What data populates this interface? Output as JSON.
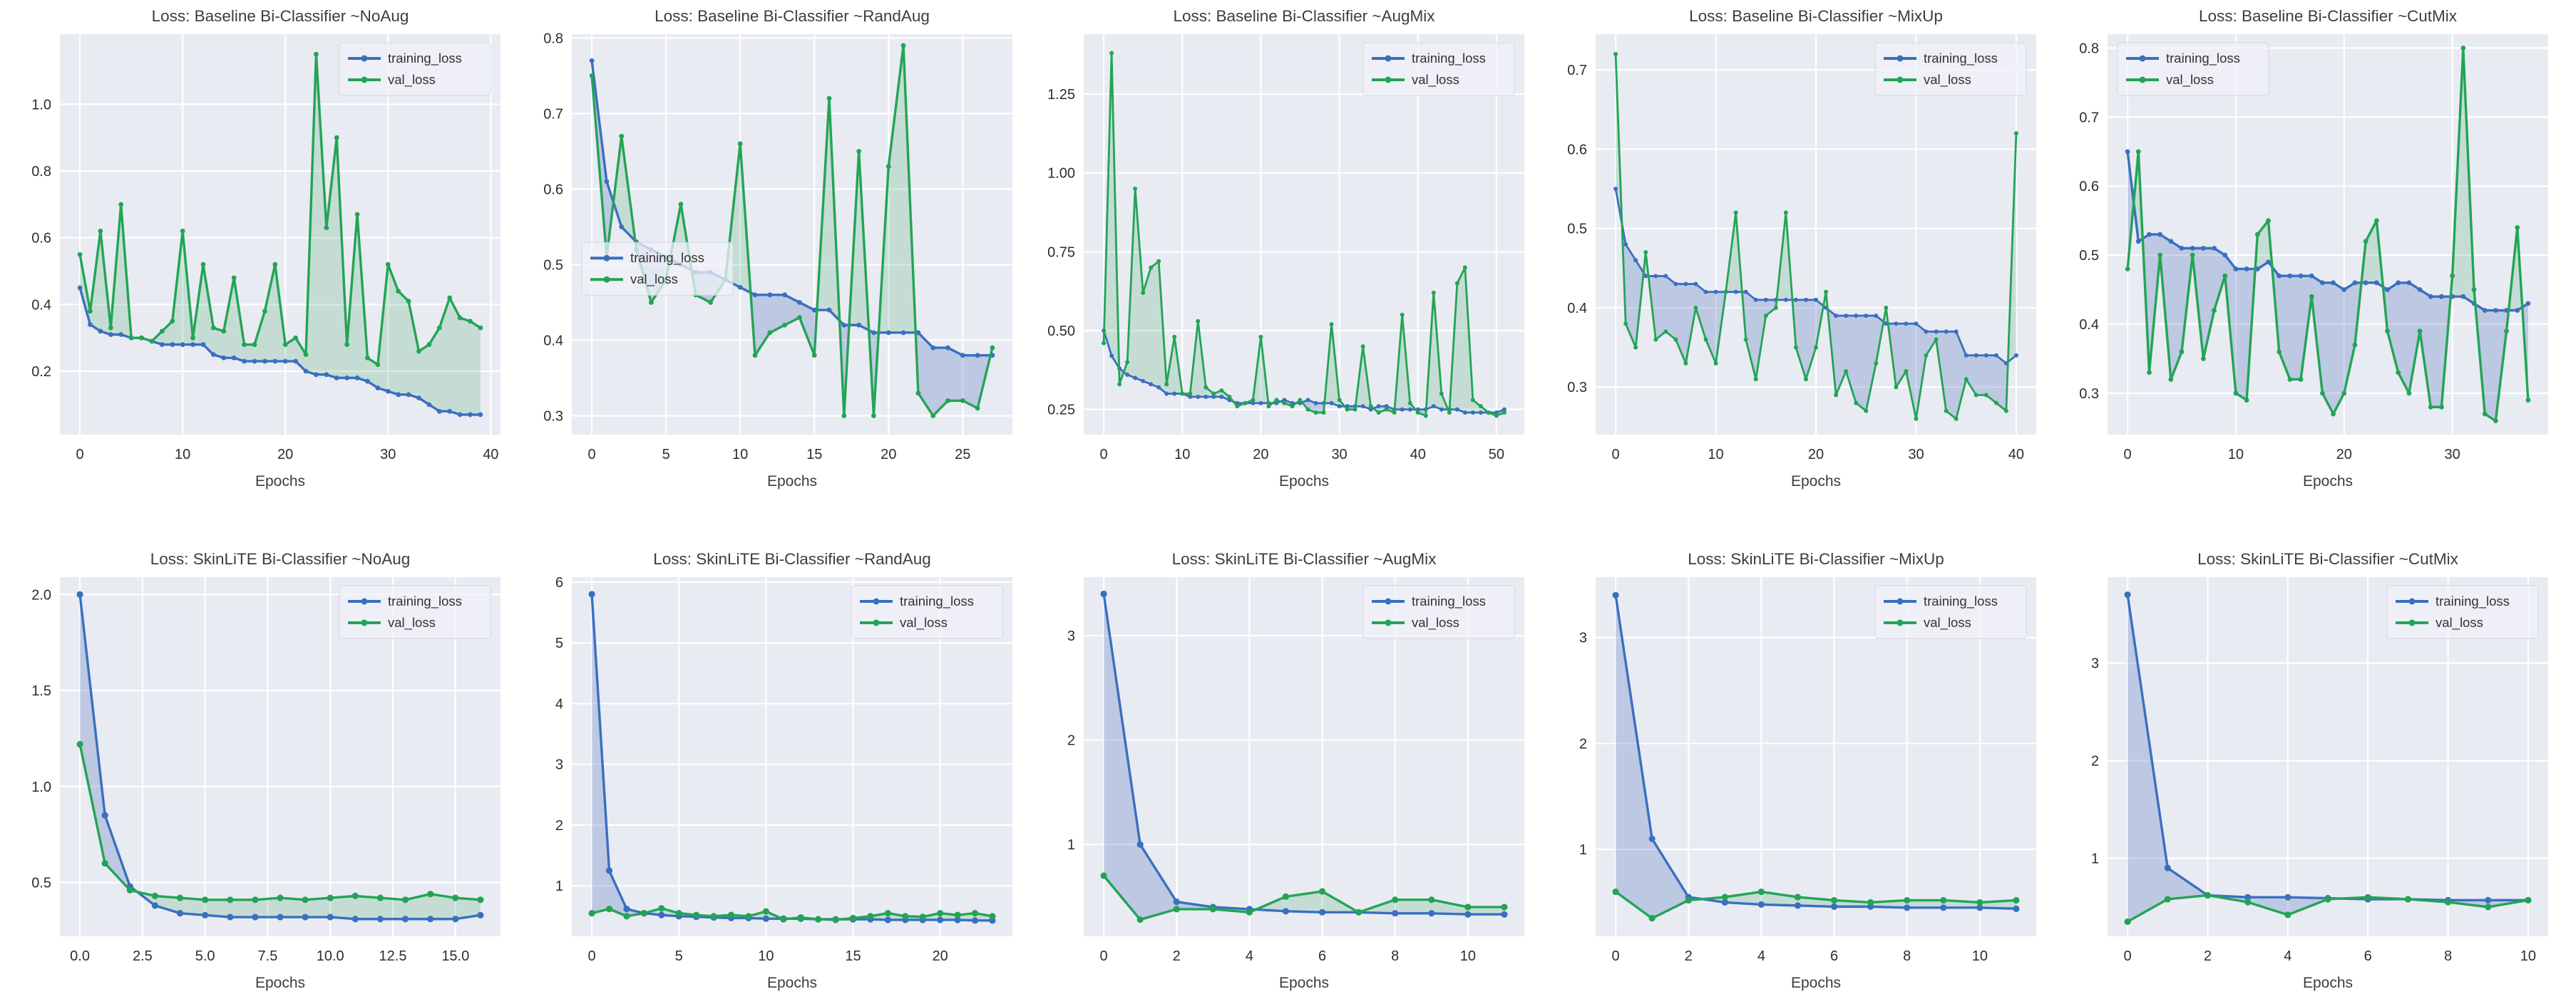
{
  "figure": {
    "xlabel": "Epochs",
    "legend_labels": {
      "train": "training_loss",
      "val": "val_loss"
    },
    "colors": {
      "train_line": "#3a6fc0",
      "val_line": "#23a455",
      "train_fill": "rgba(88,118,188,0.30)",
      "val_fill": "rgba(70,170,110,0.22)",
      "plot_bg": "#e9ebf3",
      "grid": "#ffffff",
      "text": "#3d3d3d",
      "tick_text": "#2e2e2e",
      "legend_bg": "rgba(240,242,248,0.75)",
      "legend_border": "#d3d6e0"
    }
  },
  "chart_data": [
    {
      "type": "line",
      "title": "Loss: Baseline Bi-Classifier ~NoAug",
      "xlabel": "Epochs",
      "legend_position": "top-right",
      "xlim": [
        -1.95,
        40.95
      ],
      "ylim": [
        0.01,
        1.21
      ],
      "xticks": [
        0,
        10,
        20,
        30,
        40
      ],
      "xtick_labels": [
        "0",
        "10",
        "20",
        "30",
        "40"
      ],
      "yticks": [
        0.2,
        0.4,
        0.6,
        0.8,
        1.0
      ],
      "ytick_labels": [
        "0.2",
        "0.4",
        "0.6",
        "0.8",
        "1.0"
      ],
      "series": [
        {
          "name": "training_loss",
          "values": [
            0.45,
            0.34,
            0.32,
            0.31,
            0.31,
            0.3,
            0.3,
            0.29,
            0.28,
            0.28,
            0.28,
            0.28,
            0.28,
            0.25,
            0.24,
            0.24,
            0.23,
            0.23,
            0.23,
            0.23,
            0.23,
            0.23,
            0.2,
            0.19,
            0.19,
            0.18,
            0.18,
            0.18,
            0.17,
            0.15,
            0.14,
            0.13,
            0.13,
            0.12,
            0.1,
            0.08,
            0.08,
            0.07,
            0.07,
            0.07
          ]
        },
        {
          "name": "val_loss",
          "values": [
            0.55,
            0.38,
            0.62,
            0.33,
            0.7,
            0.3,
            0.3,
            0.29,
            0.32,
            0.35,
            0.62,
            0.3,
            0.52,
            0.33,
            0.32,
            0.48,
            0.28,
            0.28,
            0.38,
            0.52,
            0.28,
            0.3,
            0.25,
            1.15,
            0.63,
            0.9,
            0.28,
            0.67,
            0.24,
            0.22,
            0.52,
            0.44,
            0.41,
            0.26,
            0.28,
            0.33,
            0.42,
            0.36,
            0.35,
            0.33
          ]
        }
      ]
    },
    {
      "type": "line",
      "title": "Loss: Baseline Bi-Classifier ~RandAug",
      "xlabel": "Epochs",
      "legend_position": "center-left",
      "xlim": [
        -1.35,
        28.35
      ],
      "ylim": [
        0.275,
        0.805
      ],
      "xticks": [
        0,
        5,
        10,
        15,
        20,
        25
      ],
      "xtick_labels": [
        "0",
        "5",
        "10",
        "15",
        "20",
        "25"
      ],
      "yticks": [
        0.3,
        0.4,
        0.5,
        0.6,
        0.7,
        0.8
      ],
      "ytick_labels": [
        "0.3",
        "0.4",
        "0.5",
        "0.6",
        "0.7",
        "0.8"
      ],
      "series": [
        {
          "name": "training_loss",
          "values": [
            0.77,
            0.61,
            0.55,
            0.53,
            0.52,
            0.51,
            0.5,
            0.49,
            0.49,
            0.48,
            0.47,
            0.46,
            0.46,
            0.46,
            0.45,
            0.44,
            0.44,
            0.42,
            0.42,
            0.41,
            0.41,
            0.41,
            0.41,
            0.39,
            0.39,
            0.38,
            0.38,
            0.38
          ]
        },
        {
          "name": "val_loss",
          "values": [
            0.75,
            0.51,
            0.67,
            0.52,
            0.45,
            0.48,
            0.58,
            0.46,
            0.45,
            0.48,
            0.66,
            0.38,
            0.41,
            0.42,
            0.43,
            0.38,
            0.72,
            0.3,
            0.65,
            0.3,
            0.63,
            0.79,
            0.33,
            0.3,
            0.32,
            0.32,
            0.31,
            0.39
          ]
        }
      ]
    },
    {
      "type": "line",
      "title": "Loss: Baseline Bi-Classifier ~AugMix",
      "xlabel": "Epochs",
      "legend_position": "top-right",
      "xlim": [
        -2.55,
        53.55
      ],
      "ylim": [
        0.17,
        1.44
      ],
      "xticks": [
        0,
        10,
        20,
        30,
        40,
        50
      ],
      "xtick_labels": [
        "0",
        "10",
        "20",
        "30",
        "40",
        "50"
      ],
      "yticks": [
        0.25,
        0.5,
        0.75,
        1.0,
        1.25
      ],
      "ytick_labels": [
        "0.25",
        "0.50",
        "0.75",
        "1.00",
        "1.25"
      ],
      "series": [
        {
          "name": "training_loss",
          "values": [
            0.5,
            0.42,
            0.38,
            0.36,
            0.35,
            0.34,
            0.33,
            0.32,
            0.3,
            0.3,
            0.3,
            0.29,
            0.29,
            0.29,
            0.29,
            0.29,
            0.28,
            0.27,
            0.27,
            0.27,
            0.27,
            0.27,
            0.27,
            0.28,
            0.27,
            0.27,
            0.28,
            0.27,
            0.27,
            0.27,
            0.26,
            0.26,
            0.26,
            0.26,
            0.25,
            0.26,
            0.26,
            0.25,
            0.25,
            0.25,
            0.25,
            0.25,
            0.26,
            0.25,
            0.25,
            0.25,
            0.24,
            0.24,
            0.24,
            0.24,
            0.24,
            0.25
          ]
        },
        {
          "name": "val_loss",
          "values": [
            0.46,
            1.38,
            0.33,
            0.4,
            0.95,
            0.62,
            0.7,
            0.72,
            0.33,
            0.48,
            0.3,
            0.3,
            0.53,
            0.32,
            0.3,
            0.31,
            0.29,
            0.26,
            0.27,
            0.28,
            0.48,
            0.26,
            0.28,
            0.27,
            0.26,
            0.28,
            0.25,
            0.24,
            0.24,
            0.52,
            0.28,
            0.25,
            0.25,
            0.45,
            0.26,
            0.24,
            0.25,
            0.24,
            0.55,
            0.27,
            0.24,
            0.23,
            0.62,
            0.3,
            0.24,
            0.65,
            0.7,
            0.28,
            0.26,
            0.24,
            0.23,
            0.24
          ]
        }
      ]
    },
    {
      "type": "line",
      "title": "Loss: Baseline Bi-Classifier ~MixUp",
      "xlabel": "Epochs",
      "legend_position": "top-right",
      "xlim": [
        -2.0,
        42.0
      ],
      "ylim": [
        0.24,
        0.745
      ],
      "xticks": [
        0,
        10,
        20,
        30,
        40
      ],
      "xtick_labels": [
        "0",
        "10",
        "20",
        "30",
        "40"
      ],
      "yticks": [
        0.3,
        0.4,
        0.5,
        0.6,
        0.7
      ],
      "ytick_labels": [
        "0.3",
        "0.4",
        "0.5",
        "0.6",
        "0.7"
      ],
      "series": [
        {
          "name": "training_loss",
          "values": [
            0.55,
            0.48,
            0.46,
            0.44,
            0.44,
            0.44,
            0.43,
            0.43,
            0.43,
            0.42,
            0.42,
            0.42,
            0.42,
            0.42,
            0.41,
            0.41,
            0.41,
            0.41,
            0.41,
            0.41,
            0.41,
            0.4,
            0.39,
            0.39,
            0.39,
            0.39,
            0.39,
            0.38,
            0.38,
            0.38,
            0.38,
            0.37,
            0.37,
            0.37,
            0.37,
            0.34,
            0.34,
            0.34,
            0.34,
            0.33,
            0.34
          ]
        },
        {
          "name": "val_loss",
          "values": [
            0.72,
            0.38,
            0.35,
            0.47,
            0.36,
            0.37,
            0.36,
            0.33,
            0.4,
            0.36,
            0.33,
            0.42,
            0.52,
            0.36,
            0.31,
            0.39,
            0.4,
            0.52,
            0.35,
            0.31,
            0.35,
            0.42,
            0.29,
            0.32,
            0.28,
            0.27,
            0.33,
            0.4,
            0.3,
            0.32,
            0.26,
            0.34,
            0.36,
            0.27,
            0.26,
            0.31,
            0.29,
            0.29,
            0.28,
            0.27,
            0.62
          ]
        }
      ]
    },
    {
      "type": "line",
      "title": "Loss: Baseline Bi-Classifier ~CutMix",
      "xlabel": "Epochs",
      "legend_position": "top-left",
      "xlim": [
        -1.85,
        38.85
      ],
      "ylim": [
        0.24,
        0.82
      ],
      "xticks": [
        0,
        10,
        20,
        30
      ],
      "xtick_labels": [
        "0",
        "10",
        "20",
        "30"
      ],
      "yticks": [
        0.3,
        0.4,
        0.5,
        0.6,
        0.7,
        0.8
      ],
      "ytick_labels": [
        "0.3",
        "0.4",
        "0.5",
        "0.6",
        "0.7",
        "0.8"
      ],
      "series": [
        {
          "name": "training_loss",
          "values": [
            0.65,
            0.52,
            0.53,
            0.53,
            0.52,
            0.51,
            0.51,
            0.51,
            0.51,
            0.5,
            0.48,
            0.48,
            0.48,
            0.49,
            0.47,
            0.47,
            0.47,
            0.47,
            0.46,
            0.46,
            0.45,
            0.46,
            0.46,
            0.46,
            0.45,
            0.46,
            0.46,
            0.45,
            0.44,
            0.44,
            0.44,
            0.44,
            0.43,
            0.42,
            0.42,
            0.42,
            0.42,
            0.43
          ]
        },
        {
          "name": "val_loss",
          "values": [
            0.48,
            0.65,
            0.33,
            0.5,
            0.32,
            0.36,
            0.5,
            0.35,
            0.42,
            0.47,
            0.3,
            0.29,
            0.53,
            0.55,
            0.36,
            0.32,
            0.32,
            0.44,
            0.3,
            0.27,
            0.3,
            0.37,
            0.52,
            0.55,
            0.39,
            0.33,
            0.3,
            0.39,
            0.28,
            0.28,
            0.47,
            0.8,
            0.45,
            0.27,
            0.26,
            0.39,
            0.54,
            0.29
          ]
        }
      ]
    },
    {
      "type": "line",
      "title": "Loss: SkinLiTE Bi-Classifier ~NoAug",
      "xlabel": "Epochs",
      "legend_position": "top-right",
      "xlim": [
        -0.8,
        16.8
      ],
      "ylim": [
        0.22,
        2.09
      ],
      "xticks": [
        0,
        2.5,
        5,
        7.5,
        10,
        12.5,
        15
      ],
      "xtick_labels": [
        "0.0",
        "2.5",
        "5.0",
        "7.5",
        "10.0",
        "12.5",
        "15.0"
      ],
      "yticks": [
        0.5,
        1.0,
        1.5,
        2.0
      ],
      "ytick_labels": [
        "0.5",
        "1.0",
        "1.5",
        "2.0"
      ],
      "series": [
        {
          "name": "training_loss",
          "values": [
            2.0,
            0.85,
            0.48,
            0.38,
            0.34,
            0.33,
            0.32,
            0.32,
            0.32,
            0.32,
            0.32,
            0.31,
            0.31,
            0.31,
            0.31,
            0.31,
            0.33
          ]
        },
        {
          "name": "val_loss",
          "values": [
            1.22,
            0.6,
            0.46,
            0.43,
            0.42,
            0.41,
            0.41,
            0.41,
            0.42,
            0.41,
            0.42,
            0.43,
            0.42,
            0.41,
            0.44,
            0.42,
            0.41
          ]
        }
      ]
    },
    {
      "type": "line",
      "title": "Loss: SkinLiTE Bi-Classifier ~RandAug",
      "xlabel": "Epochs",
      "legend_position": "top-right",
      "xlim": [
        -1.15,
        24.15
      ],
      "ylim": [
        0.17,
        6.08
      ],
      "xticks": [
        0,
        5,
        10,
        15,
        20
      ],
      "xtick_labels": [
        "0",
        "5",
        "10",
        "15",
        "20"
      ],
      "yticks": [
        1,
        2,
        3,
        4,
        5,
        6
      ],
      "ytick_labels": [
        "1",
        "2",
        "3",
        "4",
        "5",
        "6"
      ],
      "series": [
        {
          "name": "training_loss",
          "values": [
            5.8,
            1.25,
            0.62,
            0.55,
            0.52,
            0.5,
            0.49,
            0.48,
            0.47,
            0.47,
            0.46,
            0.46,
            0.46,
            0.45,
            0.45,
            0.45,
            0.45,
            0.44,
            0.44,
            0.44,
            0.44,
            0.44,
            0.43,
            0.43
          ]
        },
        {
          "name": "val_loss",
          "values": [
            0.55,
            0.62,
            0.5,
            0.55,
            0.63,
            0.55,
            0.52,
            0.5,
            0.52,
            0.5,
            0.58,
            0.45,
            0.48,
            0.45,
            0.44,
            0.47,
            0.5,
            0.55,
            0.5,
            0.49,
            0.55,
            0.52,
            0.55,
            0.5
          ]
        }
      ]
    },
    {
      "type": "line",
      "title": "Loss: SkinLiTE Bi-Classifier ~AugMix",
      "xlabel": "Epochs",
      "legend_position": "top-right",
      "xlim": [
        -0.55,
        11.55
      ],
      "ylim": [
        0.12,
        3.56
      ],
      "xticks": [
        0,
        2,
        4,
        6,
        8,
        10
      ],
      "xtick_labels": [
        "0",
        "2",
        "4",
        "6",
        "8",
        "10"
      ],
      "yticks": [
        1,
        2,
        3
      ],
      "ytick_labels": [
        "1",
        "2",
        "3"
      ],
      "series": [
        {
          "name": "training_loss",
          "values": [
            3.4,
            1.0,
            0.45,
            0.4,
            0.38,
            0.36,
            0.35,
            0.35,
            0.34,
            0.34,
            0.33,
            0.33
          ]
        },
        {
          "name": "val_loss",
          "values": [
            0.7,
            0.28,
            0.38,
            0.38,
            0.35,
            0.5,
            0.55,
            0.35,
            0.47,
            0.47,
            0.4,
            0.4
          ]
        }
      ]
    },
    {
      "type": "line",
      "title": "Loss: SkinLiTE Bi-Classifier ~MixUp",
      "xlabel": "Epochs",
      "legend_position": "top-right",
      "xlim": [
        -0.55,
        11.55
      ],
      "ylim": [
        0.18,
        3.57
      ],
      "xticks": [
        0,
        2,
        4,
        6,
        8,
        10
      ],
      "xtick_labels": [
        "0",
        "2",
        "4",
        "6",
        "8",
        "10"
      ],
      "yticks": [
        1,
        2,
        3
      ],
      "ytick_labels": [
        "1",
        "2",
        "3"
      ],
      "series": [
        {
          "name": "training_loss",
          "values": [
            3.4,
            1.1,
            0.55,
            0.5,
            0.48,
            0.47,
            0.46,
            0.46,
            0.45,
            0.45,
            0.45,
            0.44
          ]
        },
        {
          "name": "val_loss",
          "values": [
            0.6,
            0.35,
            0.52,
            0.55,
            0.6,
            0.55,
            0.52,
            0.5,
            0.52,
            0.52,
            0.5,
            0.52
          ]
        }
      ]
    },
    {
      "type": "line",
      "title": "Loss: SkinLiTE Bi-Classifier ~CutMix",
      "xlabel": "Epochs",
      "legend_position": "top-right",
      "xlim": [
        -0.5,
        10.5
      ],
      "ylim": [
        0.2,
        3.88
      ],
      "xticks": [
        0,
        2,
        4,
        6,
        8,
        10
      ],
      "xtick_labels": [
        "0",
        "2",
        "4",
        "6",
        "8",
        "10"
      ],
      "yticks": [
        1,
        2,
        3
      ],
      "ytick_labels": [
        "1",
        "2",
        "3"
      ],
      "series": [
        {
          "name": "training_loss",
          "values": [
            3.7,
            0.9,
            0.62,
            0.6,
            0.6,
            0.59,
            0.58,
            0.58,
            0.57,
            0.57,
            0.57
          ]
        },
        {
          "name": "val_loss",
          "values": [
            0.35,
            0.58,
            0.62,
            0.55,
            0.42,
            0.58,
            0.6,
            0.58,
            0.55,
            0.5,
            0.57
          ]
        }
      ]
    }
  ]
}
